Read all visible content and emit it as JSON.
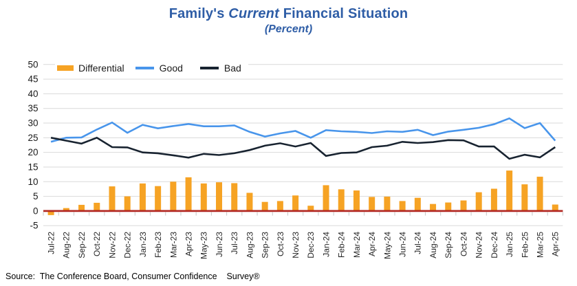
{
  "title": {
    "prefix": "Family's ",
    "emphasis": "Current",
    "suffix": " Financial Situation",
    "subtitle": "(Percent)"
  },
  "legend": [
    {
      "label": "Differential",
      "color": "#F6A324",
      "swatch": "bar-swatch"
    },
    {
      "label": "Good",
      "color": "#4895EB",
      "swatch": "line-swatch"
    },
    {
      "label": "Bad",
      "color": "#182330",
      "swatch": "line-swatch"
    }
  ],
  "source_note": "Source:  The Conference Board, Consumer Confidence    Survey®",
  "colors": {
    "title_blue": "#2E5DA6",
    "differential_orange": "#F6A324",
    "good_blue": "#4895EB",
    "bad_navy": "#182330",
    "zero_axis_red": "#B22823",
    "gridline_gray": "#D9D9D9",
    "tick_gray": "#C6C6C6",
    "axis_text": "#262626"
  },
  "chart_data": {
    "type": "combo",
    "title": "Family's Current Financial Situation",
    "subtitle": "(Percent)",
    "categories": [
      "Jul-22",
      "Aug-22",
      "Sep-22",
      "Oct-22",
      "Nov-22",
      "Dec-22",
      "Jan-23",
      "Feb-23",
      "Mar-23",
      "Apr-23",
      "May-23",
      "Jun-23",
      "Jul-23",
      "Aug-23",
      "Sep-23",
      "Oct-23",
      "Nov-23",
      "Dec-23",
      "Jan-24",
      "Feb-24",
      "Mar-24",
      "Apr-24",
      "May-24",
      "Jun-24",
      "Jul-24",
      "Aug-24",
      "Sep-24",
      "Oct-24",
      "Nov-24",
      "Dec-24",
      "Jan-25",
      "Feb-25",
      "Mar-25",
      "Apr-25"
    ],
    "series": [
      {
        "name": "Differential",
        "type": "bar",
        "color": "#F6A324",
        "values": [
          -1.4,
          1.0,
          2.1,
          2.8,
          8.4,
          5.0,
          9.4,
          8.5,
          10.0,
          11.5,
          9.4,
          9.8,
          9.5,
          6.2,
          3.1,
          3.4,
          5.3,
          1.8,
          8.8,
          7.4,
          7.0,
          4.8,
          4.9,
          3.4,
          4.5,
          2.4,
          2.9,
          3.6,
          6.4,
          7.6,
          13.8,
          9.1,
          11.7,
          2.2
        ]
      },
      {
        "name": "Good",
        "type": "line",
        "color": "#4895EB",
        "values": [
          23.6,
          25.0,
          25.1,
          27.8,
          30.2,
          26.7,
          29.4,
          28.2,
          29.0,
          29.7,
          28.9,
          28.9,
          29.2,
          27.0,
          25.4,
          26.5,
          27.3,
          25.0,
          27.6,
          27.2,
          27.0,
          26.6,
          27.2,
          27.0,
          27.7,
          25.9,
          27.1,
          27.7,
          28.4,
          29.6,
          31.6,
          28.3,
          30.0,
          24.0
        ]
      },
      {
        "name": "Bad",
        "type": "line",
        "color": "#182330",
        "values": [
          25.0,
          24.0,
          23.0,
          25.0,
          21.8,
          21.7,
          20.0,
          19.7,
          19.0,
          18.2,
          19.5,
          19.1,
          19.7,
          20.8,
          22.3,
          23.1,
          22.0,
          23.2,
          18.8,
          19.8,
          20.0,
          21.8,
          22.3,
          23.6,
          23.2,
          23.5,
          24.2,
          24.1,
          22.0,
          22.0,
          17.8,
          19.2,
          18.3,
          21.8
        ]
      }
    ],
    "ylim": [
      -5,
      50
    ],
    "ytick_step": 5,
    "grid": true,
    "legend_position": "top-left",
    "zero_axis_color": "#B22823"
  }
}
